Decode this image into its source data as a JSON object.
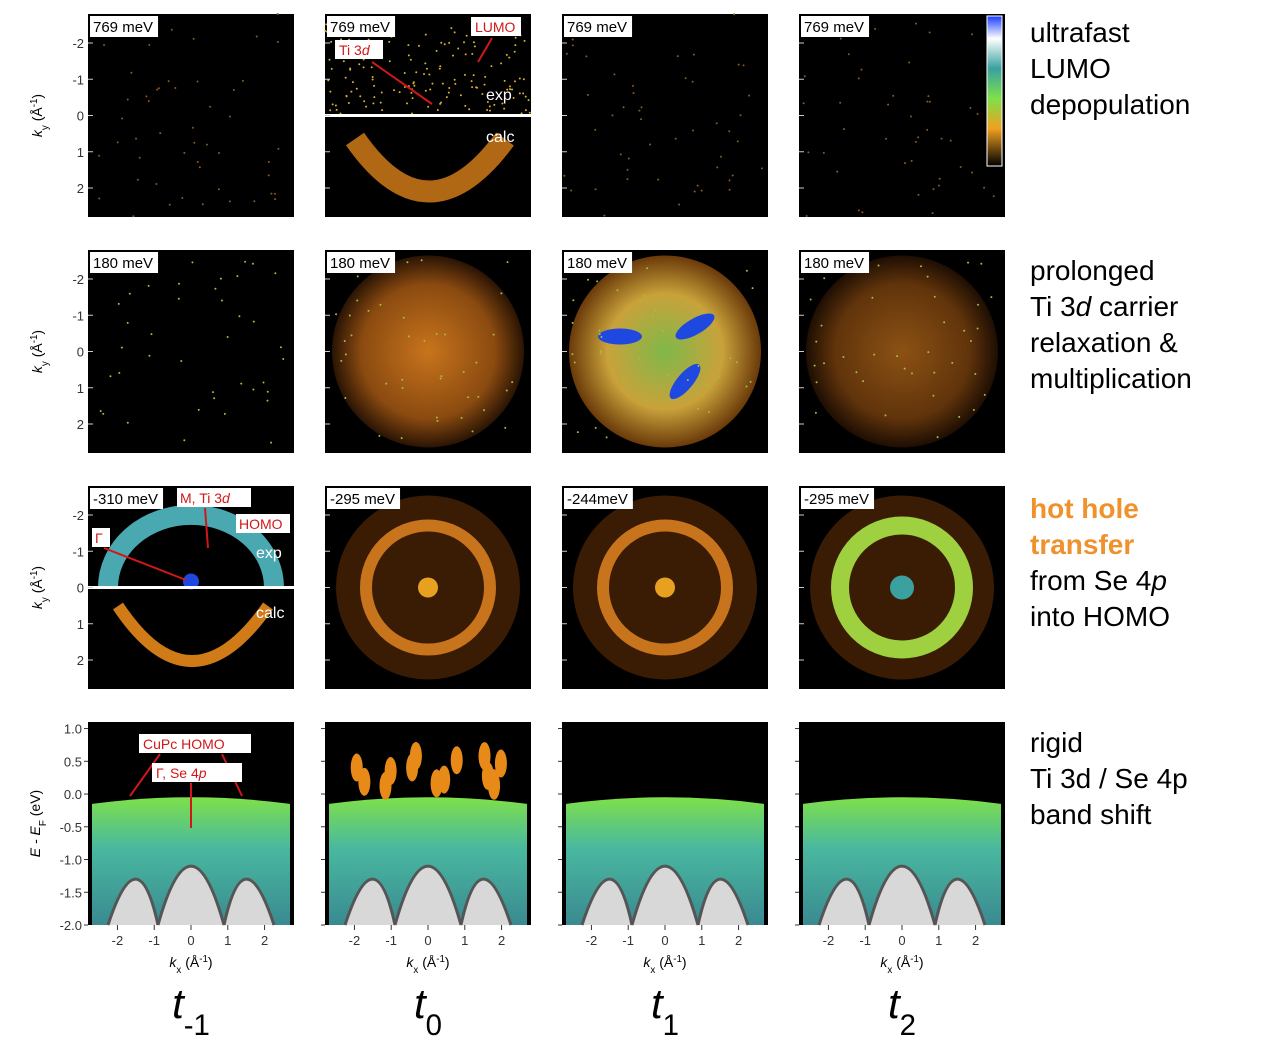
{
  "rows": [
    {
      "panels": [
        "769 meV",
        "769 meV",
        "769 meV",
        "769 meV"
      ],
      "description": [
        [
          {
            "text": "ultrafast"
          }
        ],
        [
          {
            "text": "LUMO"
          }
        ],
        [
          {
            "text": "depopulation"
          }
        ]
      ]
    },
    {
      "panels": [
        "180 meV",
        "180 meV",
        "180 meV",
        "180 meV"
      ],
      "description": [
        [
          {
            "text": "prolonged"
          }
        ],
        [
          {
            "text": "Ti 3"
          },
          {
            "text": "d",
            "italic": true
          },
          {
            "text": " carrier"
          }
        ],
        [
          {
            "text": "relaxation &"
          }
        ],
        [
          {
            "text": "multiplication"
          }
        ]
      ]
    },
    {
      "panels": [
        "-310 meV",
        "-295 meV",
        "-244meV",
        "-295 meV"
      ],
      "description": [
        [
          {
            "text": "hot hole",
            "bold": true,
            "color": "#f0922b"
          }
        ],
        [
          {
            "text": "transfer",
            "bold": true,
            "color": "#f0922b"
          }
        ],
        [
          {
            "text": "from Se 4"
          },
          {
            "text": "p",
            "italic": true
          }
        ],
        [
          {
            "text": "into HOMO"
          }
        ]
      ]
    },
    {
      "panels": [],
      "description": [
        [
          {
            "text": "rigid"
          }
        ],
        [
          {
            "text": "Ti 3d / Se 4p"
          }
        ],
        [
          {
            "text": "band shift"
          }
        ]
      ]
    }
  ],
  "k_axis": {
    "xlim": [
      -2.8,
      2.8
    ],
    "xticks": [
      -2,
      -1,
      0,
      1,
      2
    ],
    "ylim": [
      -2.8,
      2.8
    ],
    "yticks": [
      -2,
      -1,
      0,
      1,
      2
    ],
    "x_label": {
      "symbol": "k",
      "sub": "x",
      "unit": " (Å",
      "sup": "-1",
      "close": ")"
    },
    "y_label": {
      "symbol": "k",
      "sub": "y",
      "unit": " (Å",
      "sup": "-1",
      "close": ")"
    }
  },
  "energy_axis": {
    "ylim": [
      -2.0,
      1.1
    ],
    "yticks": [
      {
        "value": 1,
        "label": "1.0"
      },
      {
        "value": 0.5,
        "label": "0.5"
      },
      {
        "value": 0,
        "label": "0.0"
      },
      {
        "value": -0.5,
        "label": "-0.5"
      },
      {
        "value": -1,
        "label": "-1.0"
      },
      {
        "value": -1.5,
        "label": "-1.5"
      },
      {
        "value": -2,
        "label": "-2.0"
      }
    ],
    "y_label": {
      "symbol": "E - E",
      "sub": "F",
      "unit": " (eV)"
    }
  },
  "columns": [
    {
      "symbol": "t",
      "sub": "-1"
    },
    {
      "symbol": "t",
      "sub": "0"
    },
    {
      "symbol": "t",
      "sub": "1"
    },
    {
      "symbol": "t",
      "sub": "2"
    }
  ],
  "annotations": {
    "lumo": "LUMO",
    "ti3d": {
      "text": "Ti 3",
      "italic": "d"
    },
    "exp_top": "exp",
    "calc_top": "calc",
    "m_ti3d": {
      "text": "M, Ti 3",
      "italic": "d"
    },
    "homo": "HOMO",
    "gamma": "Γ",
    "exp_mid": "exp",
    "calc_mid": "calc",
    "cupc_homo": "CuPc HOMO",
    "gamma_se": {
      "text": "Γ, Se 4",
      "italic": "p"
    }
  }
}
